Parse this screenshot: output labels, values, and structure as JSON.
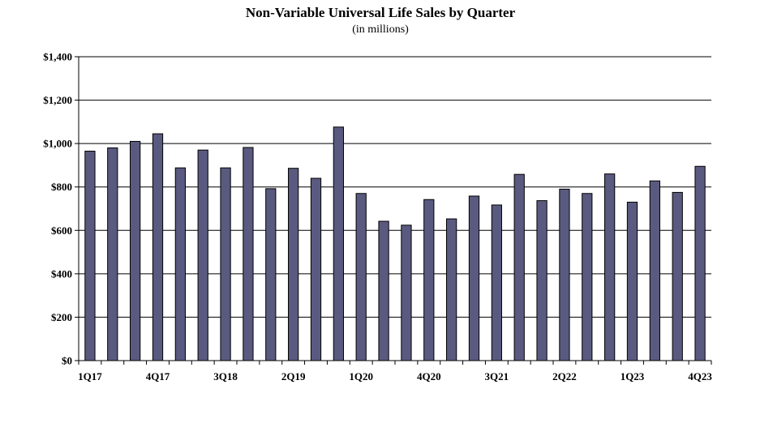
{
  "chart_data": {
    "type": "bar",
    "title": "Non-Variable Universal Life Sales by Quarter",
    "subtitle": "(in millions)",
    "xlabel": "",
    "ylabel": "",
    "ylim": [
      0,
      1400
    ],
    "yticks": [
      0,
      200,
      400,
      600,
      800,
      1000,
      1200,
      1400
    ],
    "ytick_labels": [
      "$0",
      "$200",
      "$400",
      "$600",
      "$800",
      "$1,000",
      "$1,200",
      "$1,400"
    ],
    "categories": [
      "1Q17",
      "2Q17",
      "3Q17",
      "4Q17",
      "1Q18",
      "2Q18",
      "3Q18",
      "4Q18",
      "1Q19",
      "2Q19",
      "3Q19",
      "4Q19",
      "1Q20",
      "2Q20",
      "3Q20",
      "4Q20",
      "1Q21",
      "2Q21",
      "3Q21",
      "4Q21",
      "1Q22",
      "2Q22",
      "3Q22",
      "4Q22",
      "1Q23",
      "2Q23",
      "3Q23",
      "4Q23"
    ],
    "xtick_labels": [
      "1Q17",
      "",
      "",
      "4Q17",
      "",
      "",
      "3Q18",
      "",
      "",
      "2Q19",
      "",
      "",
      "1Q20",
      "",
      "",
      "4Q20",
      "",
      "",
      "3Q21",
      "",
      "",
      "2Q22",
      "",
      "",
      "1Q23",
      "",
      "",
      "4Q23"
    ],
    "values": [
      965,
      980,
      1010,
      1045,
      888,
      970,
      888,
      982,
      792,
      886,
      840,
      1076,
      770,
      642,
      624,
      742,
      653,
      758,
      717,
      858,
      737,
      790,
      770,
      860,
      730,
      828,
      775,
      895
    ],
    "grid": true,
    "bar_color": "#5a5a80",
    "bar_edge_color": "#000000"
  }
}
